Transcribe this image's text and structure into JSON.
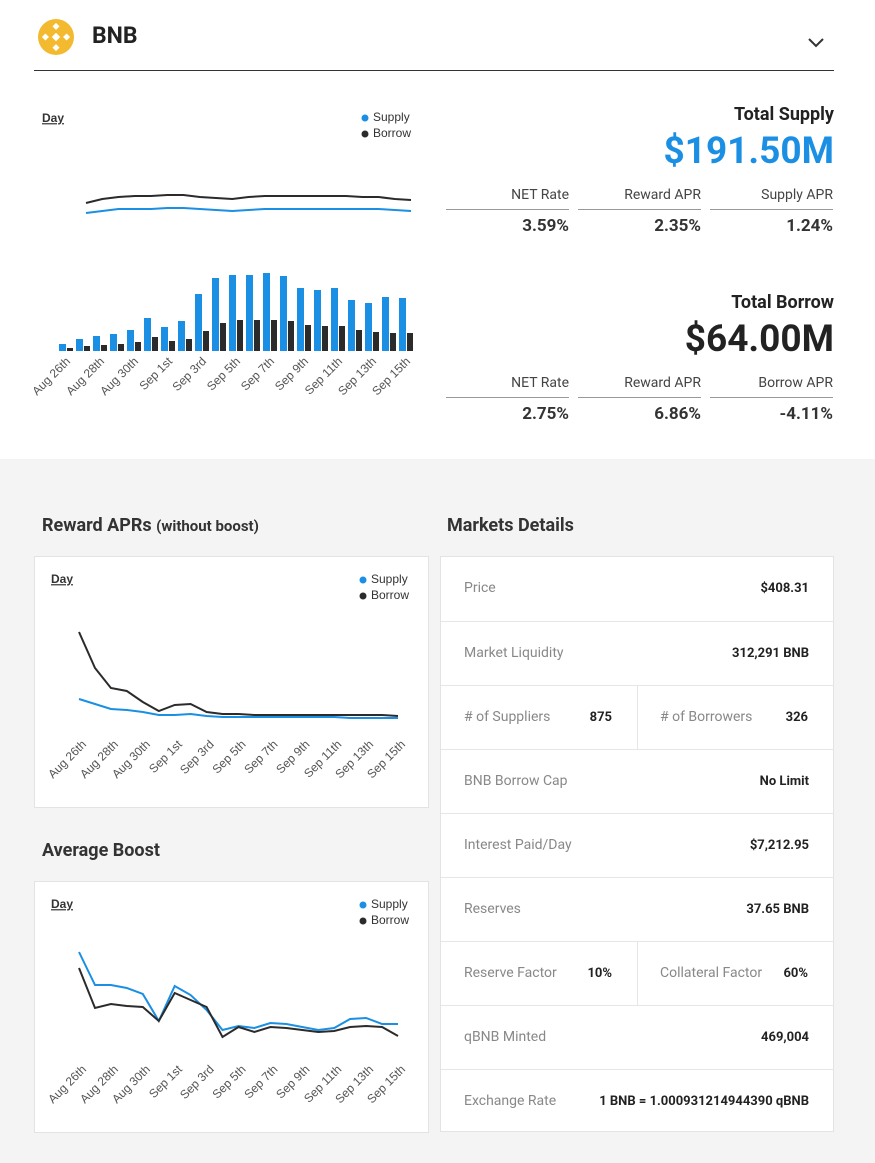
{
  "header": {
    "asset": "BNB"
  },
  "chart_data": [
    {
      "type": "combo",
      "period": "Day",
      "categories": [
        "Aug 26th",
        null,
        "Aug 28th",
        null,
        "Aug 30th",
        null,
        "Sep 1st",
        null,
        "Sep 3rd",
        null,
        "Sep 5th",
        null,
        "Sep 7th",
        null,
        "Sep 9th",
        null,
        "Sep 11th",
        null,
        "Sep 13th",
        null,
        "Sep 15th"
      ],
      "ylim": [
        0,
        86
      ],
      "line_ylim": [
        0,
        35
      ],
      "series": [
        {
          "name": "Supply",
          "color": "#1a8fe3",
          "line_values": [
            2,
            4,
            6,
            6,
            6,
            7,
            7,
            6,
            5,
            4,
            5,
            6,
            6,
            6,
            6,
            6,
            6,
            6,
            6,
            5,
            4
          ],
          "bar_values": [
            7,
            12,
            15,
            17,
            21,
            33,
            24,
            30,
            57,
            73,
            76,
            76,
            78,
            75,
            63,
            61,
            63,
            51,
            48,
            54,
            53
          ]
        },
        {
          "name": "Borrow",
          "color": "#2b2b2b",
          "line_values": [
            12,
            16,
            18,
            19,
            19,
            20,
            20,
            18,
            17,
            16,
            18,
            19,
            19,
            19,
            19,
            19,
            19,
            18,
            18,
            16,
            15
          ],
          "bar_values": [
            3,
            5,
            6,
            7,
            9,
            14,
            10,
            12,
            20,
            28,
            31,
            31,
            31,
            30,
            26,
            25,
            25,
            21,
            19,
            18,
            18
          ]
        }
      ]
    },
    {
      "type": "line",
      "title": "Reward APRs",
      "subtitle": "(without boost)",
      "period": "Day",
      "categories": [
        "Aug 26th",
        null,
        "Aug 28th",
        null,
        "Aug 30th",
        null,
        "Sep 1st",
        null,
        "Sep 3rd",
        null,
        "Sep 5th",
        null,
        "Sep 7th",
        null,
        "Sep 9th",
        null,
        "Sep 11th",
        null,
        "Sep 13th",
        null,
        "Sep 15th"
      ],
      "ylim": [
        0,
        100
      ],
      "series": [
        {
          "name": "Supply",
          "color": "#1a8fe3",
          "values": [
            21,
            16,
            11,
            10,
            8,
            5,
            5,
            6,
            4,
            3,
            3,
            3,
            3,
            3,
            3,
            3,
            3,
            2,
            2,
            2,
            2
          ]
        },
        {
          "name": "Borrow",
          "color": "#2b2b2b",
          "values": [
            88,
            52,
            32,
            29,
            18,
            9,
            15,
            16,
            8,
            6,
            6,
            5,
            5,
            5,
            5,
            5,
            5,
            5,
            5,
            5,
            4
          ]
        }
      ]
    },
    {
      "type": "line",
      "title": "Average Boost",
      "period": "Day",
      "categories": [
        "Aug 26th",
        null,
        "Aug 28th",
        null,
        "Aug 30th",
        null,
        "Sep 1st",
        null,
        "Sep 3rd",
        null,
        "Sep 5th",
        null,
        "Sep 7th",
        null,
        "Sep 9th",
        null,
        "Sep 11th",
        null,
        "Sep 13th",
        null,
        "Sep 15th"
      ],
      "ylim": [
        0,
        100
      ],
      "series": [
        {
          "name": "Supply",
          "color": "#1a8fe3",
          "values": [
            93,
            60,
            60,
            57,
            51,
            24,
            59,
            50,
            35,
            15,
            19,
            17,
            22,
            21,
            18,
            15,
            17,
            26,
            27,
            21,
            21
          ]
        },
        {
          "name": "Borrow",
          "color": "#2b2b2b",
          "values": [
            77,
            37,
            41,
            39,
            38,
            24,
            52,
            45,
            38,
            8,
            18,
            13,
            18,
            17,
            15,
            13,
            14,
            18,
            19,
            18,
            9
          ]
        }
      ]
    }
  ],
  "supply": {
    "title": "Total Supply",
    "amount": "$191.50M",
    "color": "#1a8fe3",
    "metrics": [
      {
        "label": "NET Rate",
        "value": "3.59%"
      },
      {
        "label": "Reward APR",
        "value": "2.35%"
      },
      {
        "label": "Supply APR",
        "value": "1.24%"
      }
    ]
  },
  "borrow": {
    "title": "Total Borrow",
    "amount": "$64.00M",
    "color": "#222222",
    "metrics": [
      {
        "label": "NET Rate",
        "value": "2.75%"
      },
      {
        "label": "Reward APR",
        "value": "6.86%"
      },
      {
        "label": "Borrow APR",
        "value": "-4.11%"
      }
    ]
  },
  "markets": {
    "title": "Markets Details",
    "rows": [
      [
        {
          "label": "Price",
          "value": "$408.31"
        }
      ],
      [
        {
          "label": "Market Liquidity",
          "value": "312,291 BNB"
        }
      ],
      [
        {
          "label": "# of Suppliers",
          "value": "875"
        },
        {
          "label": "# of Borrowers",
          "value": "326"
        }
      ],
      [
        {
          "label": "BNB Borrow Cap",
          "value": "No Limit"
        }
      ],
      [
        {
          "label": "Interest Paid/Day",
          "value": "$7,212.95"
        }
      ],
      [
        {
          "label": "Reserves",
          "value": "37.65 BNB"
        }
      ],
      [
        {
          "label": "Reserve Factor",
          "value": "10%"
        },
        {
          "label": "Collateral Factor",
          "value": "60%"
        }
      ],
      [
        {
          "label": "qBNB Minted",
          "value": "469,004"
        }
      ],
      [
        {
          "label": "Exchange Rate",
          "value": "1 BNB = 1.000931214944390 qBNB"
        }
      ]
    ]
  }
}
